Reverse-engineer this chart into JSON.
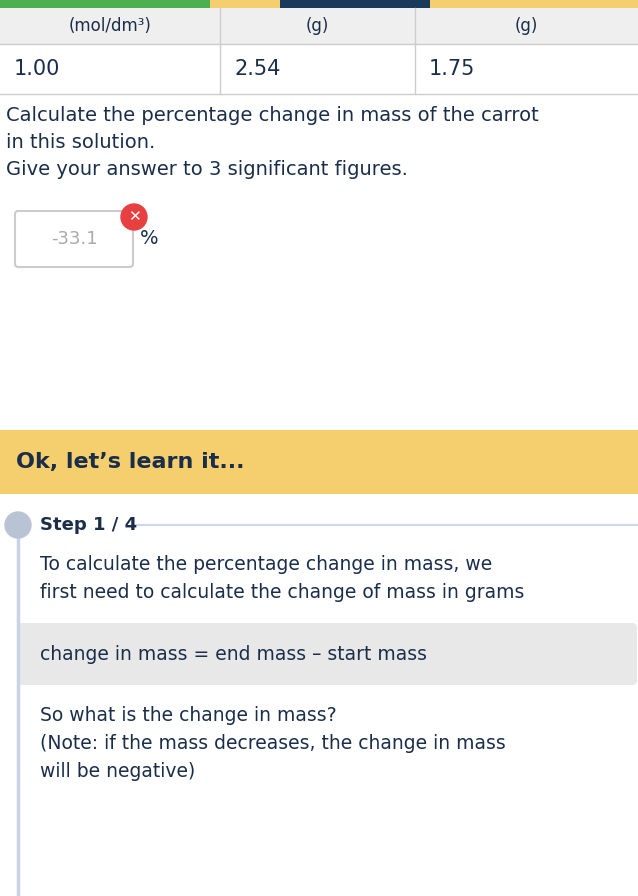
{
  "bg_color": "#ffffff",
  "table_header_bg": "#efefef",
  "table_border_color": "#cccccc",
  "table_col1_header": "(mol/dm³)",
  "table_col2_header": "(g)",
  "table_col3_header": "(g)",
  "table_val1": "1.00",
  "table_val2": "2.54",
  "table_val3": "1.75",
  "table_text_color": "#1a2e4a",
  "question_line1": "Calculate the percentage change in mass of the carrot",
  "question_line2": "in this solution.",
  "question_line3": "Give your answer to 3 significant figures.",
  "answer_value": "-33.1",
  "answer_unit": "%",
  "answer_box_color": "#ffffff",
  "answer_box_border": "#cccccc",
  "answer_text_color": "#aaaaaa",
  "error_icon_color": "#e84040",
  "ok_banner_bg": "#f5ce6e",
  "ok_banner_text": "Ok, let’s learn it...",
  "ok_banner_text_color": "#1a2e4a",
  "step_label": "Step 1 / 4",
  "step_label_color": "#1a2e4a",
  "step_line_color": "#d0d8e8",
  "step_body_line1": "To calculate the percentage change in mass, we",
  "step_body_line2": "first need to calculate the change of mass in grams",
  "step_body_color": "#1a2e4a",
  "formula_box_bg": "#e8e8e8",
  "formula_text": "change in mass = end mass – start mass",
  "formula_text_color": "#1a2e4a",
  "question2_line1": "So what is the change in mass?",
  "question2_line2": "(Note: if the mass decreases, the change in mass",
  "question2_line3": "will be negative)",
  "step_dot_color": "#b8c4d4",
  "step_line_left_color": "#c8d4e4",
  "top_green_bar_color": "#4caf50",
  "top_blue_bar_color": "#1a3a5c",
  "top_yellow_bg": "#f5ce6e"
}
